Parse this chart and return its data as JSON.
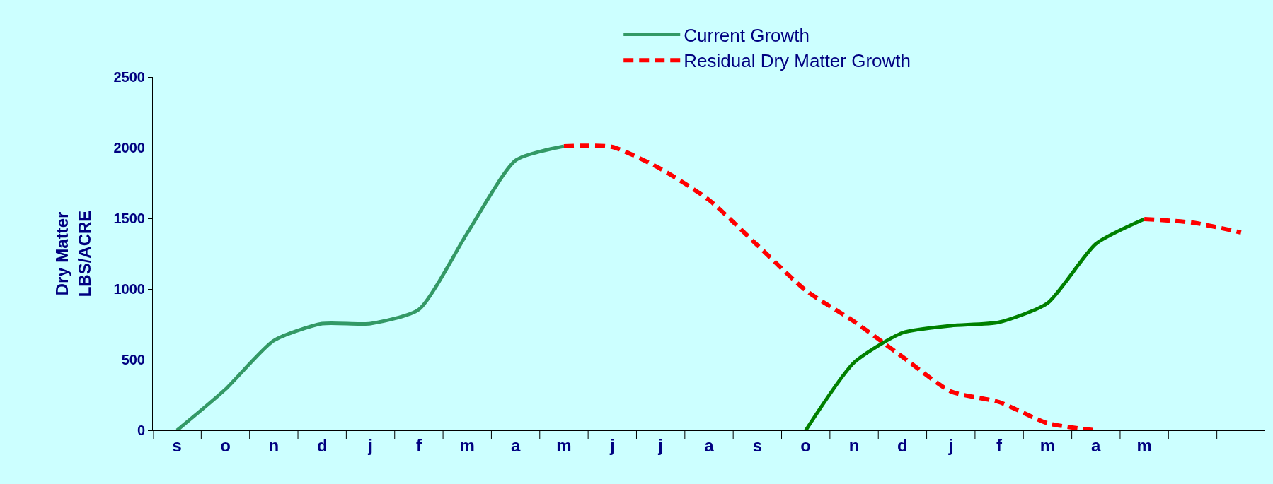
{
  "chart_data": {
    "type": "line",
    "ylabel": "Dry Matter\nLBS/ACRE",
    "categories": [
      "s",
      "o",
      "n",
      "d",
      "j",
      "f",
      "m",
      "a",
      "m",
      "j",
      "j",
      "a",
      "s",
      "o",
      "n",
      "d",
      "j",
      "f",
      "m",
      "a",
      "m",
      null,
      null
    ],
    "ylim": [
      0,
      2500
    ],
    "yticks": [
      0,
      500,
      1000,
      1500,
      2000,
      2500
    ],
    "grid": false,
    "legend": "top right",
    "marker": "none",
    "series": [
      {
        "name": "Current Growth",
        "color": "#339966",
        "line_style": "solid",
        "values": [
          0,
          290,
          635,
          755,
          755,
          855,
          1395,
          1910,
          2010,
          null,
          null,
          null,
          null,
          null,
          null,
          null,
          null,
          null,
          null,
          null,
          null,
          null,
          null
        ]
      },
      {
        "name": "Residual Dry Matter Growth",
        "color": "#ff0000",
        "line_style": "dashed",
        "values": [
          null,
          null,
          null,
          null,
          null,
          null,
          null,
          null,
          2010,
          2005,
          1850,
          1630,
          1310,
          990,
          770,
          520,
          275,
          200,
          50,
          0,
          null,
          null,
          null
        ]
      },
      {
        "color": "#008000",
        "line_style": "solid",
        "values": [
          null,
          null,
          null,
          null,
          null,
          null,
          null,
          null,
          null,
          null,
          null,
          null,
          null,
          0,
          480,
          690,
          740,
          765,
          900,
          1320,
          1495,
          null,
          null
        ]
      },
      {
        "color": "#ff0000",
        "line_style": "dashed",
        "values": [
          null,
          null,
          null,
          null,
          null,
          null,
          null,
          null,
          null,
          null,
          null,
          null,
          null,
          null,
          null,
          null,
          null,
          null,
          null,
          null,
          1495,
          1470,
          1400
        ]
      }
    ]
  }
}
